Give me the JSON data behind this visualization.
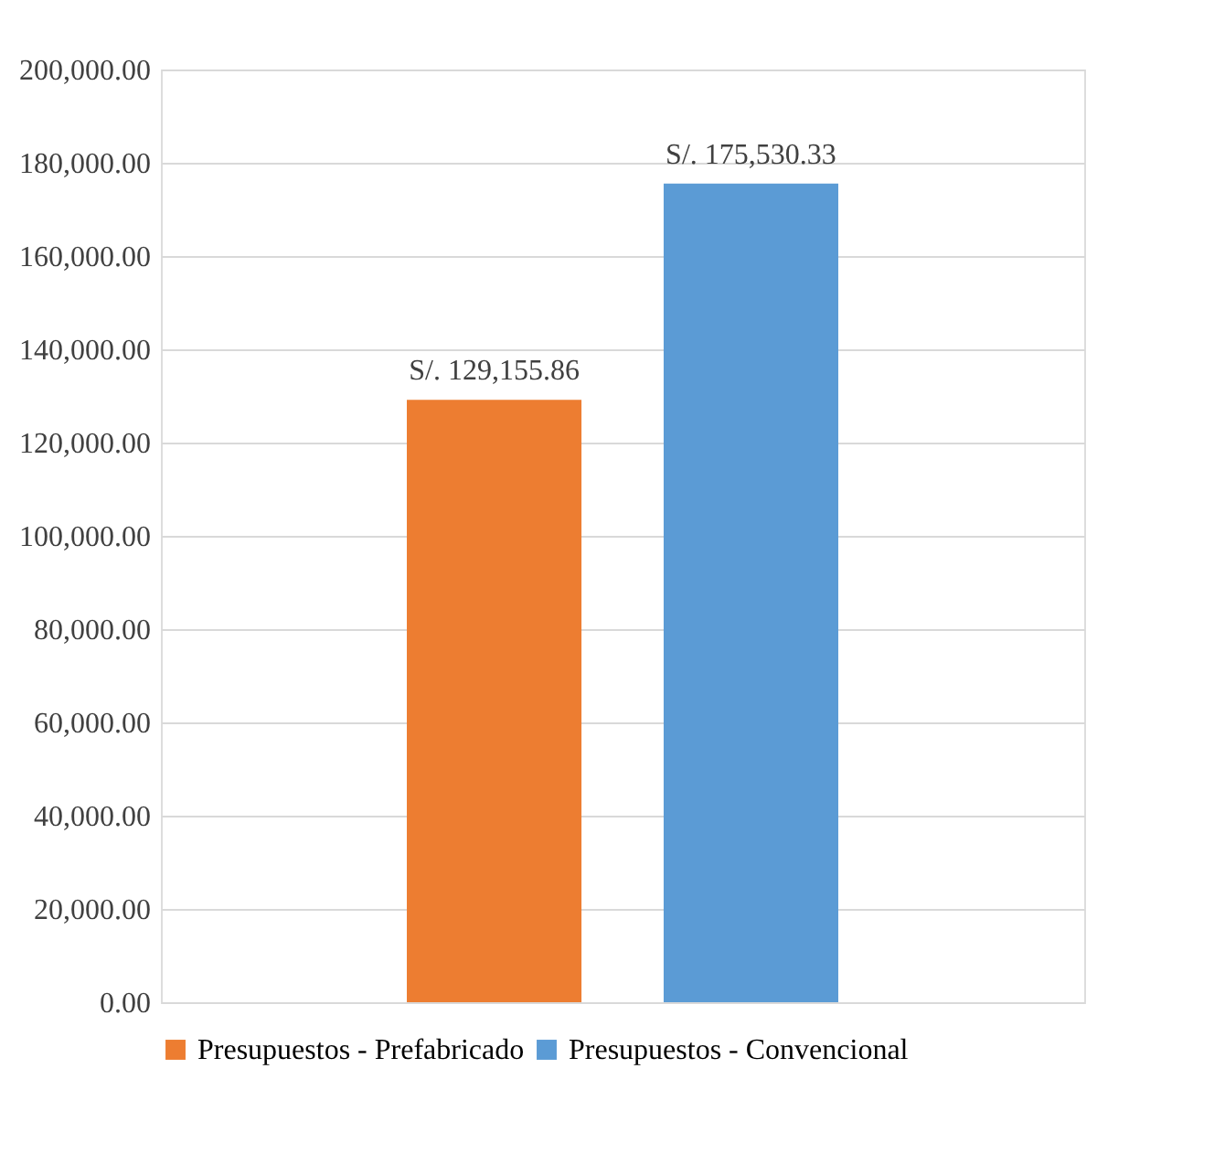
{
  "chart_data": {
    "type": "bar",
    "categories": [
      null
    ],
    "series": [
      {
        "name": "Presupuestos - Prefabricado",
        "color": "#ed7d31",
        "values": [
          129155.86
        ],
        "value_labels": [
          "S/. 129,155.86"
        ]
      },
      {
        "name": "Presupuestos - Convencional",
        "color": "#5b9bd5",
        "values": [
          175530.33
        ],
        "value_labels": [
          "S/. 175,530.33"
        ]
      }
    ],
    "ylim": [
      0,
      200000
    ],
    "yticks": [
      {
        "value": 0,
        "label": "0.00"
      },
      {
        "value": 20000,
        "label": "20,000.00"
      },
      {
        "value": 40000,
        "label": "40,000.00"
      },
      {
        "value": 60000,
        "label": "60,000.00"
      },
      {
        "value": 80000,
        "label": "80,000.00"
      },
      {
        "value": 100000,
        "label": "100,000.00"
      },
      {
        "value": 120000,
        "label": "120,000.00"
      },
      {
        "value": 140000,
        "label": "140,000.00"
      },
      {
        "value": 160000,
        "label": "160,000.00"
      },
      {
        "value": 180000,
        "label": "180,000.00"
      },
      {
        "value": 200000,
        "label": "200,000.00"
      }
    ],
    "grid": "y",
    "legend": "bottom",
    "tick_labels": "y"
  }
}
